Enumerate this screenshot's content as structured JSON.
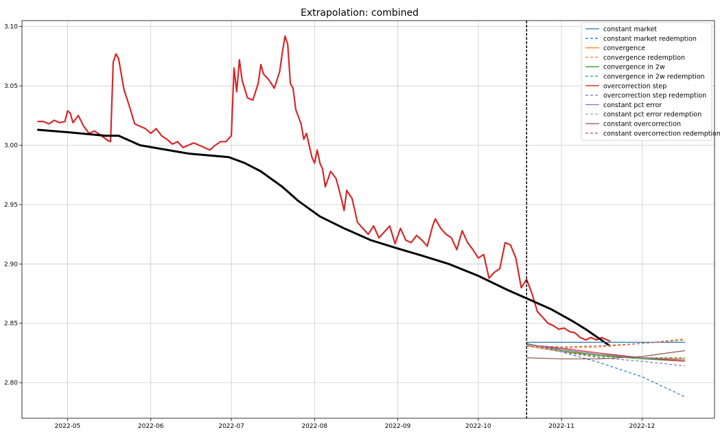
{
  "chart_data": {
    "type": "line",
    "title": "Extrapolation: combined",
    "xlabel": "",
    "ylabel": "",
    "x_range": [
      "2022-04-14",
      "2022-12-28"
    ],
    "ylim": [
      2.77,
      3.105
    ],
    "grid": true,
    "legend_position": "top-right",
    "x_ticks": [
      {
        "date": "2022-05-01",
        "label": "2022-05"
      },
      {
        "date": "2022-06-01",
        "label": "2022-06"
      },
      {
        "date": "2022-07-01",
        "label": "2022-07"
      },
      {
        "date": "2022-08-01",
        "label": "2022-08"
      },
      {
        "date": "2022-09-01",
        "label": "2022-09"
      },
      {
        "date": "2022-10-01",
        "label": "2022-10"
      },
      {
        "date": "2022-11-01",
        "label": "2022-11"
      },
      {
        "date": "2022-12-01",
        "label": "2022-12"
      }
    ],
    "y_ticks": [
      {
        "value": 2.8,
        "label": "2.80"
      },
      {
        "value": 2.85,
        "label": "2.85"
      },
      {
        "value": 2.9,
        "label": "2.90"
      },
      {
        "value": 2.95,
        "label": "2.95"
      },
      {
        "value": 3.0,
        "label": "3.00"
      },
      {
        "value": 3.05,
        "label": "3.05"
      },
      {
        "value": 3.1,
        "label": "3.10"
      }
    ],
    "vertical_line": {
      "date": "2022-10-19",
      "style": "dashed",
      "color": "#000000"
    },
    "history_series": [
      {
        "color": "#d62728",
        "width": 2.2,
        "points": [
          [
            "2022-04-20",
            3.02
          ],
          [
            "2022-04-22",
            3.02
          ],
          [
            "2022-04-24",
            3.018
          ],
          [
            "2022-04-26",
            3.021
          ],
          [
            "2022-04-28",
            3.019
          ],
          [
            "2022-04-30",
            3.02
          ],
          [
            "2022-05-01",
            3.029
          ],
          [
            "2022-05-02",
            3.027
          ],
          [
            "2022-05-03",
            3.019
          ],
          [
            "2022-05-05",
            3.025
          ],
          [
            "2022-05-07",
            3.016
          ],
          [
            "2022-05-09",
            3.01
          ],
          [
            "2022-05-11",
            3.012
          ],
          [
            "2022-05-13",
            3.009
          ],
          [
            "2022-05-16",
            3.004
          ],
          [
            "2022-05-17",
            3.003
          ],
          [
            "2022-05-18",
            3.07
          ],
          [
            "2022-05-19",
            3.077
          ],
          [
            "2022-05-20",
            3.073
          ],
          [
            "2022-05-21",
            3.06
          ],
          [
            "2022-05-22",
            3.047
          ],
          [
            "2022-05-24",
            3.033
          ],
          [
            "2022-05-26",
            3.018
          ],
          [
            "2022-05-28",
            3.016
          ],
          [
            "2022-05-30",
            3.014
          ],
          [
            "2022-06-01",
            3.01
          ],
          [
            "2022-06-03",
            3.014
          ],
          [
            "2022-06-05",
            3.008
          ],
          [
            "2022-06-07",
            3.005
          ],
          [
            "2022-06-09",
            3.001
          ],
          [
            "2022-06-11",
            3.003
          ],
          [
            "2022-06-13",
            2.998
          ],
          [
            "2022-06-15",
            3.0
          ],
          [
            "2022-06-17",
            3.002
          ],
          [
            "2022-06-19",
            3.0
          ],
          [
            "2022-06-21",
            2.998
          ],
          [
            "2022-06-23",
            2.996
          ],
          [
            "2022-06-25",
            3.0
          ],
          [
            "2022-06-27",
            3.003
          ],
          [
            "2022-06-29",
            3.003
          ],
          [
            "2022-07-01",
            3.008
          ],
          [
            "2022-07-02",
            3.065
          ],
          [
            "2022-07-03",
            3.045
          ],
          [
            "2022-07-04",
            3.072
          ],
          [
            "2022-07-05",
            3.055
          ],
          [
            "2022-07-07",
            3.04
          ],
          [
            "2022-07-09",
            3.038
          ],
          [
            "2022-07-11",
            3.052
          ],
          [
            "2022-07-12",
            3.068
          ],
          [
            "2022-07-13",
            3.06
          ],
          [
            "2022-07-15",
            3.055
          ],
          [
            "2022-07-17",
            3.048
          ],
          [
            "2022-07-19",
            3.062
          ],
          [
            "2022-07-20",
            3.078
          ],
          [
            "2022-07-21",
            3.092
          ],
          [
            "2022-07-22",
            3.085
          ],
          [
            "2022-07-23",
            3.052
          ],
          [
            "2022-07-24",
            3.048
          ],
          [
            "2022-07-25",
            3.03
          ],
          [
            "2022-07-27",
            3.018
          ],
          [
            "2022-07-28",
            3.005
          ],
          [
            "2022-07-29",
            3.01
          ],
          [
            "2022-07-31",
            2.99
          ],
          [
            "2022-08-01",
            2.985
          ],
          [
            "2022-08-02",
            2.996
          ],
          [
            "2022-08-03",
            2.985
          ],
          [
            "2022-08-04",
            2.98
          ],
          [
            "2022-08-05",
            2.965
          ],
          [
            "2022-08-07",
            2.978
          ],
          [
            "2022-08-09",
            2.972
          ],
          [
            "2022-08-11",
            2.955
          ],
          [
            "2022-08-12",
            2.945
          ],
          [
            "2022-08-13",
            2.962
          ],
          [
            "2022-08-15",
            2.955
          ],
          [
            "2022-08-17",
            2.935
          ],
          [
            "2022-08-19",
            2.93
          ],
          [
            "2022-08-21",
            2.925
          ],
          [
            "2022-08-23",
            2.932
          ],
          [
            "2022-08-25",
            2.922
          ],
          [
            "2022-08-27",
            2.927
          ],
          [
            "2022-08-29",
            2.932
          ],
          [
            "2022-08-31",
            2.917
          ],
          [
            "2022-09-02",
            2.93
          ],
          [
            "2022-09-04",
            2.92
          ],
          [
            "2022-09-06",
            2.918
          ],
          [
            "2022-09-08",
            2.924
          ],
          [
            "2022-09-10",
            2.92
          ],
          [
            "2022-09-12",
            2.915
          ],
          [
            "2022-09-14",
            2.932
          ],
          [
            "2022-09-15",
            2.938
          ],
          [
            "2022-09-17",
            2.93
          ],
          [
            "2022-09-19",
            2.925
          ],
          [
            "2022-09-21",
            2.922
          ],
          [
            "2022-09-23",
            2.912
          ],
          [
            "2022-09-25",
            2.928
          ],
          [
            "2022-09-27",
            2.918
          ],
          [
            "2022-09-29",
            2.912
          ],
          [
            "2022-10-01",
            2.905
          ],
          [
            "2022-10-03",
            2.908
          ],
          [
            "2022-10-05",
            2.888
          ],
          [
            "2022-10-07",
            2.893
          ],
          [
            "2022-10-09",
            2.896
          ],
          [
            "2022-10-11",
            2.918
          ],
          [
            "2022-10-13",
            2.916
          ],
          [
            "2022-10-15",
            2.905
          ],
          [
            "2022-10-17",
            2.88
          ],
          [
            "2022-10-19",
            2.887
          ],
          [
            "2022-10-21",
            2.875
          ],
          [
            "2022-10-23",
            2.86
          ],
          [
            "2022-10-25",
            2.855
          ],
          [
            "2022-10-27",
            2.85
          ],
          [
            "2022-10-29",
            2.848
          ],
          [
            "2022-10-31",
            2.845
          ],
          [
            "2022-11-02",
            2.846
          ],
          [
            "2022-11-04",
            2.843
          ],
          [
            "2022-11-06",
            2.842
          ],
          [
            "2022-11-08",
            2.838
          ],
          [
            "2022-11-10",
            2.836
          ],
          [
            "2022-11-12",
            2.838
          ],
          [
            "2022-11-14",
            2.836
          ],
          [
            "2022-11-16",
            2.838
          ],
          [
            "2022-11-18",
            2.836
          ],
          [
            "2022-11-19",
            2.835
          ]
        ]
      },
      {
        "color": "#000000",
        "width": 3,
        "points": [
          [
            "2022-04-20",
            3.013
          ],
          [
            "2022-05-01",
            3.011
          ],
          [
            "2022-05-15",
            3.008
          ],
          [
            "2022-05-20",
            3.008
          ],
          [
            "2022-05-28",
            3.0
          ],
          [
            "2022-06-15",
            2.993
          ],
          [
            "2022-06-30",
            2.99
          ],
          [
            "2022-07-06",
            2.985
          ],
          [
            "2022-07-12",
            2.978
          ],
          [
            "2022-07-20",
            2.965
          ],
          [
            "2022-07-26",
            2.953
          ],
          [
            "2022-08-03",
            2.94
          ],
          [
            "2022-08-12",
            2.93
          ],
          [
            "2022-08-22",
            2.92
          ],
          [
            "2022-09-01",
            2.913
          ],
          [
            "2022-09-10",
            2.907
          ],
          [
            "2022-09-20",
            2.9
          ],
          [
            "2022-10-01",
            2.89
          ],
          [
            "2022-10-12",
            2.878
          ],
          [
            "2022-10-20",
            2.87
          ],
          [
            "2022-10-28",
            2.862
          ],
          [
            "2022-11-05",
            2.852
          ],
          [
            "2022-11-10",
            2.845
          ],
          [
            "2022-11-19",
            2.831
          ]
        ]
      }
    ],
    "series": [
      {
        "name": "constant market",
        "color": "#1f77b4",
        "dashed": false,
        "x": [
          "2022-10-19",
          "2022-12-17"
        ],
        "y": [
          2.834,
          2.834
        ]
      },
      {
        "name": "constant market redemption",
        "color": "#1f77b4",
        "dashed": true,
        "x": [
          "2022-10-19",
          "2022-11-01",
          "2022-11-15",
          "2022-12-01",
          "2022-12-17"
        ],
        "y": [
          2.831,
          2.826,
          2.817,
          2.805,
          2.788
        ]
      },
      {
        "name": "convergence",
        "color": "#ff7f0e",
        "dashed": false,
        "x": [
          "2022-10-19",
          "2022-11-01",
          "2022-11-15",
          "2022-12-01",
          "2022-12-17"
        ],
        "y": [
          2.831,
          2.826,
          2.823,
          2.821,
          2.82
        ]
      },
      {
        "name": "convergence redemption",
        "color": "#ff7f0e",
        "dashed": true,
        "x": [
          "2022-10-19",
          "2022-11-01",
          "2022-11-15",
          "2022-12-01",
          "2022-12-17"
        ],
        "y": [
          2.831,
          2.829,
          2.83,
          2.833,
          2.837
        ]
      },
      {
        "name": "convergence in 2w",
        "color": "#2ca02c",
        "dashed": false,
        "x": [
          "2022-10-19",
          "2022-11-01",
          "2022-11-15",
          "2022-12-01",
          "2022-12-17"
        ],
        "y": [
          2.833,
          2.827,
          2.823,
          2.82,
          2.818
        ]
      },
      {
        "name": "convergence in 2w redemption",
        "color": "#2ca02c",
        "dashed": true,
        "x": [
          "2022-10-19",
          "2022-11-01",
          "2022-11-15",
          "2022-12-01",
          "2022-12-17"
        ],
        "y": [
          2.833,
          2.826,
          2.822,
          2.821,
          2.821
        ]
      },
      {
        "name": "overcorrection step",
        "color": "#d62728",
        "dashed": false,
        "x": [
          "2022-10-19",
          "2022-11-01",
          "2022-11-15",
          "2022-12-01",
          "2022-12-17"
        ],
        "y": [
          2.832,
          2.829,
          2.825,
          2.821,
          2.818
        ]
      },
      {
        "name": "overcorrection step redemption",
        "color": "#9467bd",
        "dashed": true,
        "x": [
          "2022-10-19",
          "2022-11-01",
          "2022-11-15",
          "2022-12-01",
          "2022-12-17"
        ],
        "y": [
          2.832,
          2.826,
          2.821,
          2.818,
          2.814
        ]
      },
      {
        "name": "constant pct error",
        "color": "#9467bd",
        "dashed": false,
        "x": [
          "2022-10-19",
          "2022-11-01",
          "2022-11-15",
          "2022-12-01",
          "2022-12-17"
        ],
        "y": [
          2.832,
          2.828,
          2.824,
          2.821,
          2.819
        ]
      },
      {
        "name": "constant pct error redemption",
        "color": "#aaaaaa",
        "dashed": true,
        "x": [
          "2022-10-19",
          "2022-11-01",
          "2022-11-15",
          "2022-12-01",
          "2022-12-17"
        ],
        "y": [
          2.832,
          2.83,
          2.831,
          2.833,
          2.836
        ]
      },
      {
        "name": "constant overcorrection",
        "color": "#8c564b",
        "dashed": false,
        "x": [
          "2022-10-19",
          "2022-11-01",
          "2022-11-15",
          "2022-12-01",
          "2022-12-17"
        ],
        "y": [
          2.821,
          2.82,
          2.82,
          2.822,
          2.827
        ]
      },
      {
        "name": "constant overcorrection redemption",
        "color": "#c85a5a",
        "dashed": true,
        "x": [
          "2022-10-19",
          "2022-11-01",
          "2022-11-15",
          "2022-12-01",
          "2022-12-17"
        ],
        "y": [
          2.831,
          2.83,
          2.831,
          2.833,
          2.836
        ]
      }
    ]
  }
}
